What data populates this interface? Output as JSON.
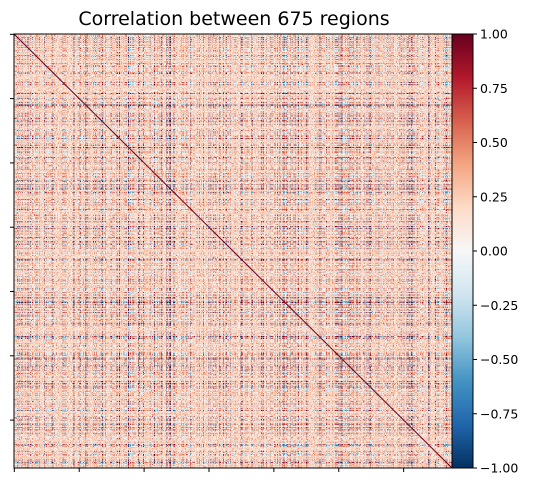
{
  "chart_data": {
    "type": "heatmap",
    "title": "Correlation between 675 regions",
    "n_regions": 675,
    "colormap": "RdBu_r",
    "value_range": [
      -1.0,
      1.0
    ],
    "diagonal_value": 1.0,
    "xlabel": "",
    "ylabel": "",
    "x_tick_labels_shown": false,
    "y_tick_labels_shown": false,
    "grid": false,
    "colorbar": {
      "position": "right",
      "ticks": [
        1.0,
        0.75,
        0.5,
        0.25,
        0.0,
        -0.25,
        -0.5,
        -0.75,
        -1.0
      ],
      "tick_labels": [
        "1.00",
        "0.75",
        "0.50",
        "0.25",
        "0.00",
        "−0.25",
        "−0.50",
        "−0.75",
        "−1.00"
      ]
    }
  },
  "colors": {
    "neg_end": "#053061",
    "mid": "#f7f7f7",
    "pos_end": "#67001f"
  }
}
